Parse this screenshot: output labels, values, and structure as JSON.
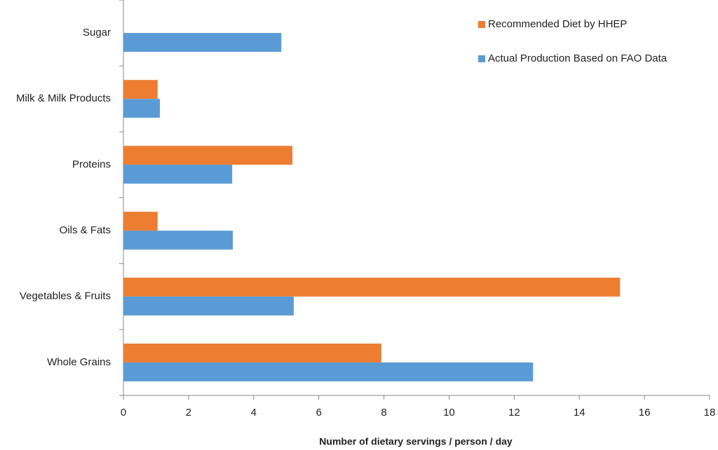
{
  "chart_data": {
    "type": "hbar",
    "x_label": "Number of dietary servings / person / day",
    "categories": [
      "Sugar",
      "Milk & Milk Products",
      "Proteins",
      "Oils & Fats",
      "Vegetables & Fruits",
      "Whole Grains"
    ],
    "series": [
      {
        "name": "Recommended Diet by HHEP",
        "color": "#ed7d31",
        "values": [
          null,
          1.05,
          5.19,
          1.05,
          15.25,
          7.92
        ]
      },
      {
        "name": "Actual Production Based on FAO Data",
        "color": "#5b9bd5",
        "values": [
          4.85,
          1.12,
          3.34,
          3.36,
          5.23,
          12.58
        ]
      }
    ],
    "xlim": [
      0,
      18
    ],
    "xticks": [
      0,
      2,
      4,
      6,
      8,
      10,
      12,
      14,
      16,
      18
    ],
    "grid": false,
    "legend": "top-right"
  }
}
